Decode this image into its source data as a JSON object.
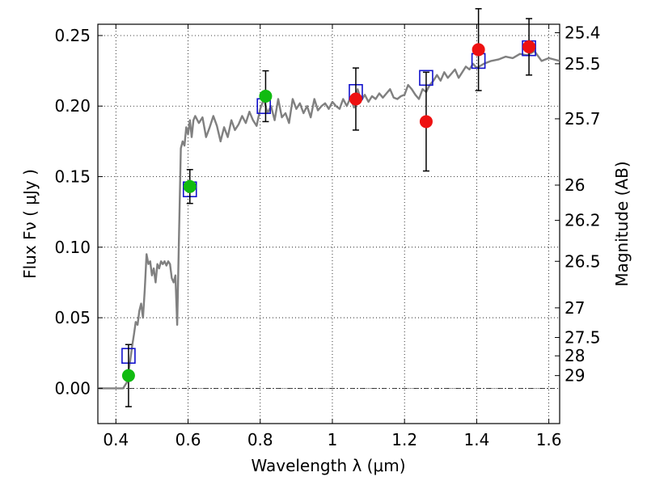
{
  "chart_data": {
    "type": "scatter",
    "xlabel": "Wavelength  λ (μm)",
    "ylabel": "Flux  Fν  ( μJy )",
    "ylabel_right": "Magnitude (AB)",
    "xlim": [
      0.35,
      1.63
    ],
    "ylim": [
      -0.025,
      0.258
    ],
    "grid": true,
    "x_ticks": [
      0.4,
      0.6,
      0.8,
      1.0,
      1.2,
      1.4,
      1.6
    ],
    "x_tick_labels": [
      "0.4",
      "0.6",
      "0.8",
      "1",
      "1.2",
      "1.4",
      "1.6"
    ],
    "y_ticks": [
      0.0,
      0.05,
      0.1,
      0.15,
      0.2,
      0.25
    ],
    "y_tick_labels": [
      "0.00",
      "0.05",
      "0.10",
      "0.15",
      "0.20",
      "0.25"
    ],
    "right_ticks": [
      {
        "flux": 0.252,
        "label": "25.4"
      },
      {
        "flux": 0.23,
        "label": "25.5"
      },
      {
        "flux": 0.191,
        "label": "25.7"
      },
      {
        "flux": 0.144,
        "label": "26"
      },
      {
        "flux": 0.119,
        "label": "26.2"
      },
      {
        "flux": 0.09,
        "label": "26.5"
      },
      {
        "flux": 0.057,
        "label": "27"
      },
      {
        "flux": 0.036,
        "label": "27.5"
      },
      {
        "flux": 0.023,
        "label": "28"
      },
      {
        "flux": 0.009,
        "label": "29"
      }
    ],
    "colors": {
      "model": "#808080",
      "observed_ground": "#11bb11",
      "observed_space": "#ee1111",
      "model_flux": "#1111cc",
      "zero_line": "#000000"
    },
    "series": [
      {
        "name": "model spectrum",
        "kind": "line",
        "x": [
          0.35,
          0.42,
          0.43,
          0.435,
          0.44,
          0.445,
          0.45,
          0.455,
          0.46,
          0.465,
          0.47,
          0.475,
          0.48,
          0.485,
          0.49,
          0.495,
          0.5,
          0.505,
          0.51,
          0.515,
          0.52,
          0.525,
          0.53,
          0.535,
          0.54,
          0.545,
          0.55,
          0.555,
          0.56,
          0.565,
          0.57,
          0.575,
          0.58,
          0.585,
          0.59,
          0.595,
          0.6,
          0.605,
          0.61,
          0.615,
          0.62,
          0.63,
          0.64,
          0.65,
          0.66,
          0.67,
          0.68,
          0.69,
          0.7,
          0.71,
          0.72,
          0.73,
          0.74,
          0.75,
          0.76,
          0.77,
          0.78,
          0.79,
          0.8,
          0.81,
          0.82,
          0.83,
          0.84,
          0.85,
          0.86,
          0.87,
          0.88,
          0.89,
          0.9,
          0.91,
          0.92,
          0.93,
          0.94,
          0.95,
          0.96,
          0.97,
          0.98,
          0.99,
          1.0,
          1.01,
          1.02,
          1.03,
          1.04,
          1.05,
          1.06,
          1.07,
          1.08,
          1.09,
          1.1,
          1.11,
          1.12,
          1.13,
          1.14,
          1.15,
          1.16,
          1.17,
          1.18,
          1.19,
          1.2,
          1.21,
          1.22,
          1.23,
          1.24,
          1.25,
          1.26,
          1.27,
          1.28,
          1.29,
          1.3,
          1.31,
          1.32,
          1.33,
          1.34,
          1.35,
          1.36,
          1.37,
          1.38,
          1.39,
          1.4,
          1.42,
          1.44,
          1.46,
          1.48,
          1.5,
          1.52,
          1.54,
          1.56,
          1.58,
          1.6,
          1.63
        ],
        "y": [
          0.0,
          0.0,
          0.004,
          0.012,
          0.02,
          0.03,
          0.038,
          0.047,
          0.045,
          0.055,
          0.06,
          0.05,
          0.07,
          0.095,
          0.088,
          0.09,
          0.08,
          0.085,
          0.075,
          0.088,
          0.085,
          0.09,
          0.088,
          0.09,
          0.087,
          0.09,
          0.088,
          0.078,
          0.075,
          0.08,
          0.045,
          0.11,
          0.17,
          0.175,
          0.172,
          0.185,
          0.18,
          0.19,
          0.178,
          0.19,
          0.193,
          0.188,
          0.192,
          0.178,
          0.185,
          0.193,
          0.186,
          0.175,
          0.185,
          0.178,
          0.19,
          0.183,
          0.187,
          0.193,
          0.188,
          0.196,
          0.19,
          0.186,
          0.198,
          0.205,
          0.195,
          0.2,
          0.19,
          0.205,
          0.192,
          0.195,
          0.188,
          0.205,
          0.198,
          0.202,
          0.195,
          0.2,
          0.192,
          0.205,
          0.197,
          0.2,
          0.202,
          0.198,
          0.203,
          0.2,
          0.198,
          0.205,
          0.2,
          0.206,
          0.199,
          0.212,
          0.204,
          0.208,
          0.203,
          0.207,
          0.205,
          0.209,
          0.206,
          0.209,
          0.212,
          0.206,
          0.205,
          0.207,
          0.208,
          0.215,
          0.212,
          0.208,
          0.205,
          0.212,
          0.21,
          0.215,
          0.218,
          0.222,
          0.218,
          0.224,
          0.22,
          0.223,
          0.226,
          0.22,
          0.224,
          0.228,
          0.226,
          0.23,
          0.227,
          0.23,
          0.232,
          0.233,
          0.235,
          0.234,
          0.237,
          0.236,
          0.239,
          0.232,
          0.234,
          0.232
        ]
      },
      {
        "name": "model broadband flux",
        "kind": "open-square",
        "x": [
          0.435,
          0.605,
          0.81,
          1.065,
          1.26,
          1.405,
          1.545
        ],
        "y": [
          0.023,
          0.141,
          0.2,
          0.21,
          0.22,
          0.232,
          0.241
        ]
      },
      {
        "name": "ground-based photometry",
        "kind": "filled-circle",
        "x": [
          0.435,
          0.605,
          0.815
        ],
        "y": [
          0.009,
          0.143,
          0.207
        ],
        "err": [
          0.022,
          0.012,
          0.018
        ]
      },
      {
        "name": "space-based photometry",
        "kind": "filled-circle",
        "x": [
          1.065,
          1.26,
          1.405,
          1.545
        ],
        "y": [
          0.205,
          0.189,
          0.24,
          0.242
        ],
        "err": [
          0.022,
          0.035,
          0.029,
          0.02
        ]
      }
    ]
  }
}
